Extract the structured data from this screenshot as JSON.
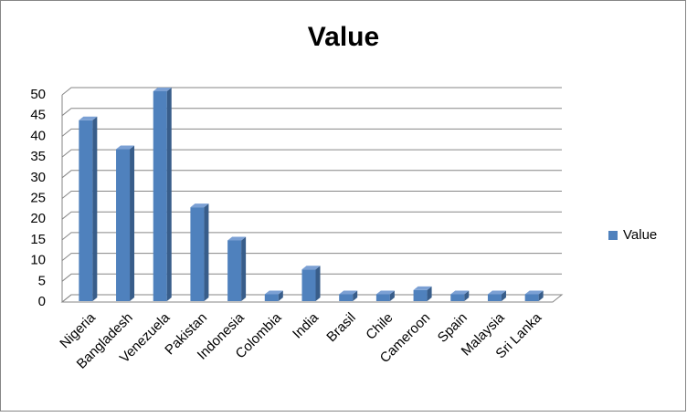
{
  "chart_data": {
    "type": "bar",
    "title": "Value",
    "categories": [
      "Nigeria",
      "Bangladesh",
      "Venezuela",
      "Pakistan",
      "Indonesia",
      "Colombia",
      "India",
      "Brasil",
      "Chile",
      "Cameroon",
      "Spain",
      "Malaysia",
      "Sri Lanka"
    ],
    "series": [
      {
        "name": "Value",
        "color": "#4f81bd",
        "values": [
          43,
          36,
          50,
          22,
          14,
          1,
          7,
          1,
          1,
          2,
          1,
          1,
          1
        ]
      }
    ],
    "ylim": [
      0,
      50
    ],
    "yticks": [
      0,
      5,
      10,
      15,
      20,
      25,
      30,
      35,
      40,
      45,
      50
    ],
    "grid": true,
    "legend": "right"
  }
}
